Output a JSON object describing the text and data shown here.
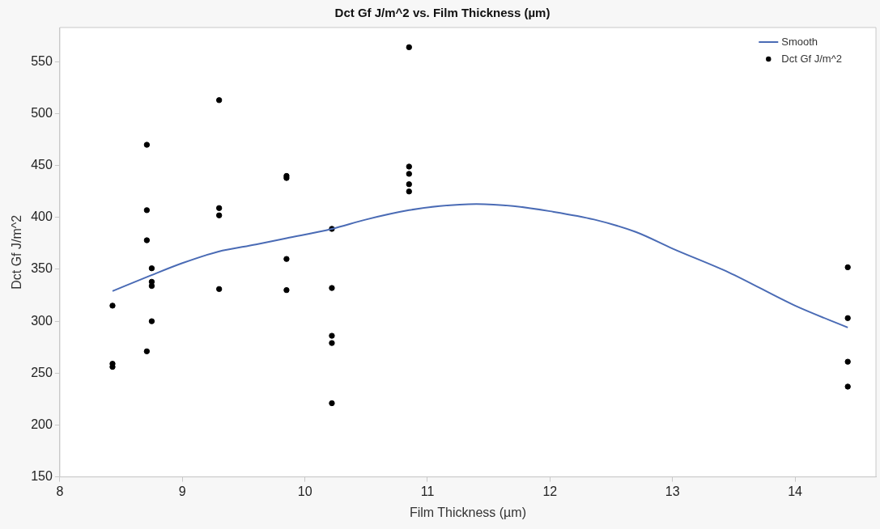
{
  "chart_data": {
    "type": "scatter",
    "title": "Dct Gf J/m^2 vs. Film Thickness (µm)",
    "xlabel": "Film Thickness (µm)",
    "ylabel": "Dct Gf J/m^2",
    "xlim": [
      8,
      14.66
    ],
    "xticks": [
      8,
      9,
      10,
      11,
      12,
      13,
      14
    ],
    "ylim": [
      150,
      583
    ],
    "yticks": [
      150,
      200,
      250,
      300,
      350,
      400,
      450,
      500,
      550
    ],
    "grid": false,
    "legend": "top right",
    "marker": "circle",
    "series": [
      {
        "name": "Smooth",
        "type": "line",
        "color": "#4a6bb5",
        "line_style": "solid",
        "marker": "none",
        "x": [
          8.43,
          8.74,
          9.0,
          9.29,
          9.6,
          9.85,
          10.22,
          10.5,
          10.85,
          11.1,
          11.4,
          11.7,
          12.0,
          12.36,
          12.7,
          13.0,
          13.46,
          14.0,
          14.43
        ],
        "values": [
          329,
          344,
          356,
          367,
          374,
          380,
          389,
          398,
          407,
          411,
          413,
          411,
          406,
          398,
          386,
          370,
          347,
          315,
          294
        ]
      },
      {
        "name": "Dct Gf J/m^2",
        "type": "scatter",
        "color": "#000000",
        "x": [
          8.43,
          8.43,
          8.43,
          8.71,
          8.71,
          8.71,
          8.71,
          8.75,
          8.75,
          8.75,
          8.75,
          9.3,
          9.3,
          9.3,
          9.3,
          9.85,
          9.85,
          9.85,
          9.85,
          10.22,
          10.22,
          10.22,
          10.22,
          10.22,
          10.85,
          10.85,
          10.85,
          10.85,
          10.85,
          14.43,
          14.43,
          14.43,
          14.43
        ],
        "values": [
          315,
          259,
          256,
          470,
          407,
          378,
          271,
          351,
          338,
          334,
          300,
          513,
          409,
          402,
          331,
          440,
          438,
          360,
          330,
          389,
          332,
          286,
          279,
          221,
          564,
          449,
          442,
          432,
          425,
          352,
          303,
          261,
          237
        ]
      }
    ]
  }
}
